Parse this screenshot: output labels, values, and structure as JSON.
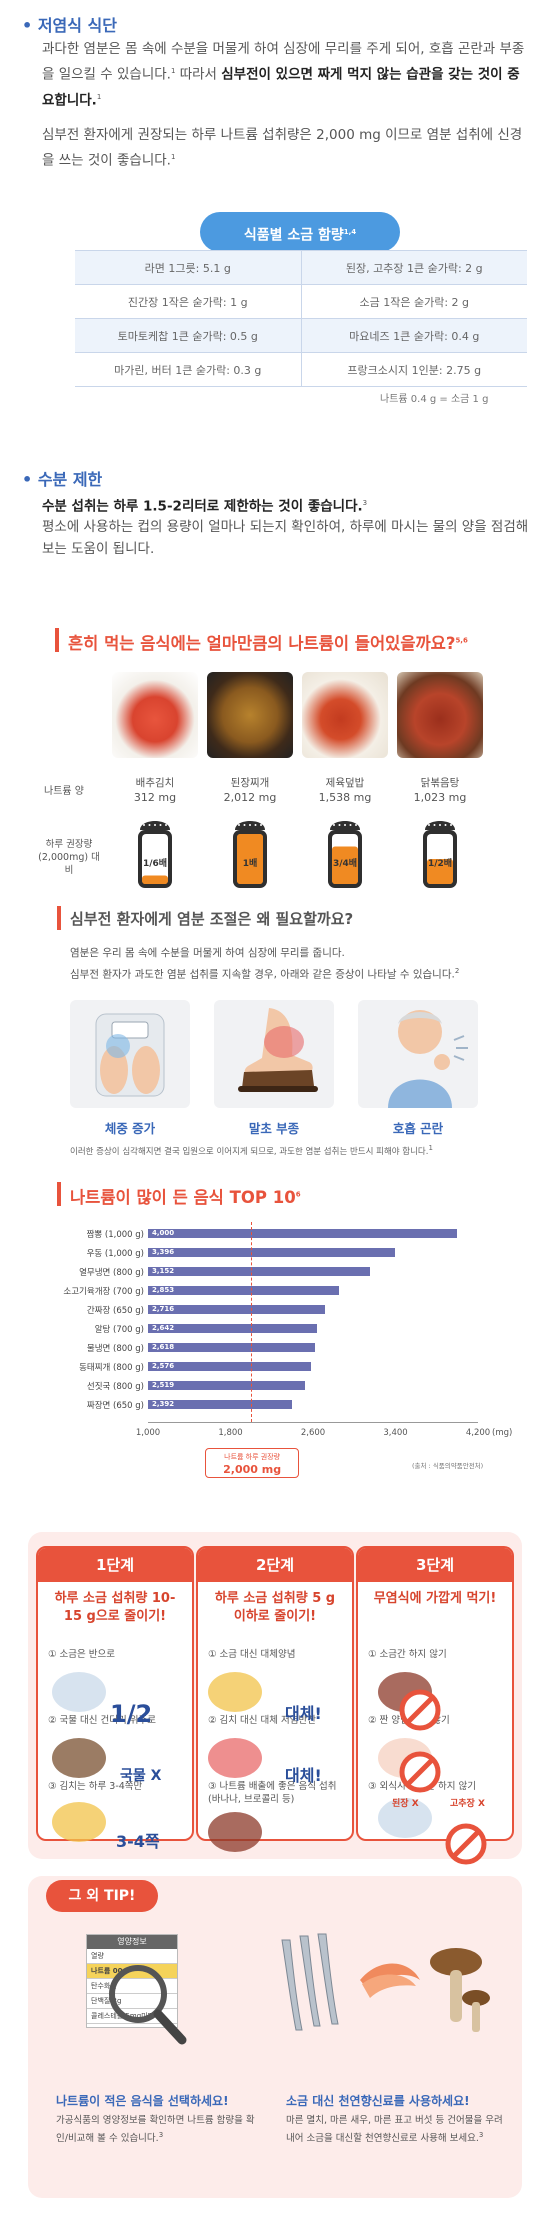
{
  "low_salt": {
    "bullet": "•",
    "title": "저염식 식단",
    "p1_a": "과다한 염분은 몸 속에 수분을 머물게 하여 심장에 무리를 주게 되어, 호흡 곤란과 부종을 일으킬 수 있습니다.",
    "p1_sup1": "1",
    "p1_b": " 따라서 ",
    "p1_bold": "심부전이 있으면 짜게 먹지 않는 습관을 갖는 것이 중요합니다.",
    "p1_sup2": "1",
    "p2": "심부전 환자에게 권장되는 하루 나트륨 섭취량은 2,000 mg 이므로 염분 섭취에 신경을 쓰는 것이 좋습니다.",
    "p2_sup": "1"
  },
  "salt_table": {
    "title": "식품별 소금 함량",
    "title_sup": "1,4",
    "rows": [
      [
        "라면 1그릇: 5.1 g",
        "된장, 고추장 1큰 숟가락: 2 g"
      ],
      [
        "진간장 1작은 숟가락: 1 g",
        "소금 1작은 숟가락: 2 g"
      ],
      [
        "토마토케찹 1큰 숟가락: 0.5 g",
        "마요네즈 1큰 숟가락: 0.4 g"
      ],
      [
        "마가린, 버터 1큰 숟가락: 0.3 g",
        "프랑크소시지 1인분: 2.75 g"
      ]
    ],
    "note": "나트륨 0.4 g = 소금 1 g"
  },
  "water": {
    "bullet": "•",
    "title": "수분 제한",
    "bold": "수분 섭취는 하루 1.5-2리터로 제한하는 것이 좋습니다.",
    "bold_sup": "3",
    "p": "평소에 사용하는 컵의 용량이 얼마나 되는지 확인하여, 하루에 마시는 물의 양을 점검해 보는 도움이 됩니다."
  },
  "sodium_foods": {
    "title": "흔히 먹는 음식에는 얼마만큼의 나트륨이 들어있을까요?",
    "title_sup": "5,6",
    "row_label1": "나트륨 양",
    "row_label2": "하루 권장량 (2,000mg) 대비",
    "items": [
      {
        "name": "배추김치",
        "amount": "312 mg",
        "ratio": "1/6배",
        "fill": 0.17
      },
      {
        "name": "된장찌개",
        "amount": "2,012 mg",
        "ratio": "1배",
        "fill": 1.0
      },
      {
        "name": "제육덮밥",
        "amount": "1,538 mg",
        "ratio": "3/4배",
        "fill": 0.75
      },
      {
        "name": "닭볶음탕",
        "amount": "1,023 mg",
        "ratio": "1/2배",
        "fill": 0.5
      }
    ]
  },
  "why": {
    "title": "심부전 환자에게 염분 조절은 왜 필요할까요?",
    "p1": "염분은 우리 몸 속에 수분을 머물게 하여 심장에 무리를 줍니다.",
    "p2": "심부전 환자가 과도한 염분 섭취를 지속할 경우, 아래와 같은 증상이 나타날 수 있습니다.",
    "p2_sup": "2",
    "symptoms": [
      "체중 증가",
      "말초 부종",
      "호흡 곤란"
    ],
    "note": "이러한 증상이 심각해지면 결국 입원으로 이어지게 되므로, 과도한 염분 섭취는 반드시 피해야 합니다.",
    "note_sup": "1"
  },
  "top10": {
    "title": "나트륨이 많이 든 음식 TOP 10",
    "title_sup": "6",
    "chart_data": {
      "type": "bar",
      "orientation": "horizontal",
      "categories": [
        "짬뽕 (1,000 g)",
        "우동 (1,000 g)",
        "열무냉면 (800 g)",
        "소고기육개장 (700 g)",
        "간짜장 (650 g)",
        "알탕 (700 g)",
        "물냉면 (800 g)",
        "동태찌개 (800 g)",
        "선짓국 (800 g)",
        "짜장면 (650 g)"
      ],
      "values": [
        4000,
        3396,
        3152,
        2853,
        2716,
        2642,
        2618,
        2576,
        2519,
        2392
      ],
      "value_labels": [
        "4,000",
        "3,396",
        "3,152",
        "2,853",
        "2,716",
        "2,642",
        "2,618",
        "2,576",
        "2,519",
        "2,392"
      ],
      "xlim": [
        1000,
        4200
      ],
      "ticks": [
        "1,000",
        "1,800",
        "2,600",
        "3,400",
        "4,200"
      ],
      "unit": "(mg)",
      "reference_line": 2000,
      "reference_label_1": "나트륨 하루 권장량",
      "reference_label_2": "2,000 mg",
      "source": "(출처 : 식품의약품안전처)"
    }
  },
  "steps": [
    {
      "head": "1단계",
      "main": "하루 소금 섭취량 10-15 g으로 줄이기!",
      "items": [
        "① 소금은 반으로",
        "② 국물 대신 건더기 위주로",
        "③ 김치는 하루 3-4쪽만"
      ],
      "emphasis": [
        "1/2",
        "국물 X",
        "3-4쪽"
      ]
    },
    {
      "head": "2단계",
      "main": "하루 소금 섭취량 5 g 이하로 줄이기!",
      "items": [
        "① 소금 대신 대체양념",
        "② 김치 대신 대체 저염반찬",
        "③ 나트륨 배출에 좋은 음식 섭취 (바나나, 브로콜리 등)"
      ],
      "emphasis": [
        "대체!",
        "대체!"
      ]
    },
    {
      "head": "3단계",
      "main": "무염식에 가깝게 먹기!",
      "items": [
        "① 소금간 하지 않기",
        "② 짠 양념 쓰지 않기",
        "③ 외식시 소금간 하지 않기"
      ],
      "emphasis": [
        "된장 X",
        "고추장 X"
      ]
    }
  ],
  "tips": {
    "head": "그 외 TIP!",
    "label_title": "영양정보",
    "label_rows": [
      "열량",
      "나트륨 00",
      "탄수화물",
      "단백질 3g",
      "콜레스테롤 5mg미만"
    ],
    "left_title": "나트륨이 적은 음식을 선택하세요!",
    "left_desc": "가공식품의 영양정보를 확인하면 나트륨 함량을 확인/비교해 볼 수 있습니다.",
    "left_sup": "3",
    "right_title": "소금 대신 천연향신료를 사용하세요!",
    "right_desc": "마른 멸치, 마른 새우, 마른 표고 버섯 등 건어물을 우려내어 소금을 대신할 천연향신료로 사용해 보세요.",
    "right_sup": "3"
  },
  "colors": {
    "blue": "#3a68b8",
    "red": "#e8533c",
    "bar": "#6a6fb0",
    "pink_bg": "#fdecea"
  }
}
